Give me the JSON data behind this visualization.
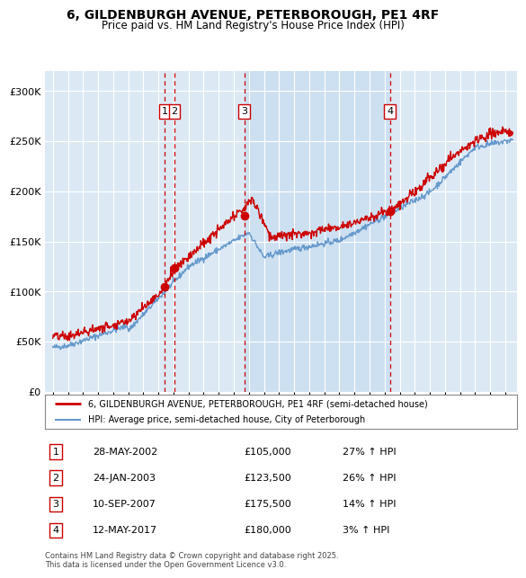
{
  "title": "6, GILDENBURGH AVENUE, PETERBOROUGH, PE1 4RF",
  "subtitle": "Price paid vs. HM Land Registry's House Price Index (HPI)",
  "bg_color": "#ffffff",
  "plot_bg_color": "#dce9f5",
  "shade_color": "#c8ddf0",
  "grid_color": "#ffffff",
  "line1_color": "#cc0000",
  "line2_color": "#6699cc",
  "transaction_color": "#cc0000",
  "vline_color": "#cc0000",
  "legend_line1": "6, GILDENBURGH AVENUE, PETERBOROUGH, PE1 4RF (semi-detached house)",
  "legend_line2": "HPI: Average price, semi-detached house, City of Peterborough",
  "transactions": [
    {
      "num": 1,
      "date": "28-MAY-2002",
      "price": 105000,
      "hpi": "27% ↑ HPI",
      "x": 2002.41
    },
    {
      "num": 2,
      "date": "24-JAN-2003",
      "price": 123500,
      "hpi": "26% ↑ HPI",
      "x": 2003.07
    },
    {
      "num": 3,
      "date": "10-SEP-2007",
      "price": 175500,
      "hpi": "14% ↑ HPI",
      "x": 2007.69
    },
    {
      "num": 4,
      "date": "12-MAY-2017",
      "price": 180000,
      "hpi": "3% ↑ HPI",
      "x": 2017.36
    }
  ],
  "shade_x1": 2007.69,
  "shade_x2": 2017.36,
  "footer": "Contains HM Land Registry data © Crown copyright and database right 2025.\nThis data is licensed under the Open Government Licence v3.0.",
  "ylim": [
    0,
    320000
  ],
  "xlim": [
    1994.5,
    2025.8
  ]
}
